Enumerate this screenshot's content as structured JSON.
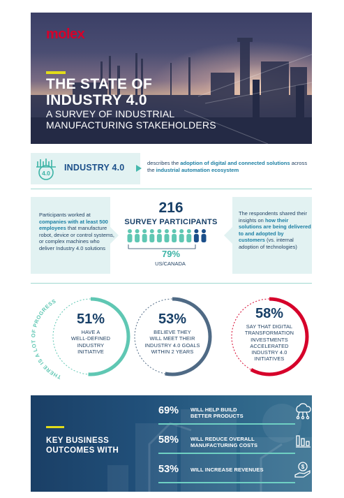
{
  "brand": {
    "logo": "molex",
    "accent": "#d6002a",
    "highlight": "#e2dc1a"
  },
  "hero": {
    "title_line1": "THE STATE OF",
    "title_line2": "INDUSTRY 4.0",
    "subtitle_line1": "A SURVEY OF INDUSTRIAL",
    "subtitle_line2": "MANUFACTURING STAKEHOLDERS"
  },
  "definition": {
    "icon": "factory-4.0-icon",
    "icon_text": "4.0",
    "label": "INDUSTRY 4.0",
    "text_plain1": "describes the ",
    "text_bold1": "adoption of digital and connected solutions",
    "text_plain2": " across the ",
    "text_bold2": "industrial automation ecosystem"
  },
  "survey": {
    "left_plain1": "Participants worked at ",
    "left_bold": "companies with at least 500 employees",
    "left_plain2": " that manufacture robot, device or control systems, or complex machines who deliver Industry 4.0 solutions",
    "count": "216",
    "count_label": "SURVEY PARTICIPANTS",
    "region_pct": "79%",
    "region_label": "US/CANADA",
    "right_plain1": "The respondents shared their insights on ",
    "right_bold": "how their solutions are being delivered to and adopted by customers",
    "right_plain2": " (vs. internal adoption of technologies)",
    "people_total": 11,
    "people_highlighted": 9
  },
  "progress": {
    "arc_label": "THERE IS A LOT OF PROGRESS",
    "stats": [
      {
        "value": "51%",
        "fraction": 0.51,
        "color": "#5fc7b3",
        "line1": "HAVE A",
        "line2": "WELL-DEFINED",
        "line3": "INDUSTRY",
        "line4": "INITIATIVE"
      },
      {
        "value": "53%",
        "fraction": 0.53,
        "color": "#4f6a85",
        "line1": "BELIEVE THEY",
        "line2": "WILL MEET THEIR",
        "line3": "INDUSTRY 4.0 GOALS",
        "line4": "WITHIN 2 YEARS"
      },
      {
        "value": "58%",
        "fraction": 0.58,
        "color": "#d6002a",
        "line1": "SAY THAT DIGITAL",
        "line2": "TRANSFORMATION",
        "line3": "INVESTMENTS",
        "line4": "ACCELERATED",
        "line5": "INDUSTRY 4.0",
        "line6": "INITIATIVES"
      }
    ]
  },
  "outcomes": {
    "heading_line1": "KEY BUSINESS",
    "heading_line2": "OUTCOMES WITH",
    "items": [
      {
        "pct": "69%",
        "line1": "WILL HELP BUILD",
        "line2": "BETTER PRODUCTS",
        "icon": "cloud-network-icon"
      },
      {
        "pct": "58%",
        "line1": "WILL REDUCE OVERALL",
        "line2": "MANUFACTURING COSTS",
        "icon": "falling-bar-chart-icon"
      },
      {
        "pct": "53%",
        "line1": "WILL INCREASE REVENUES",
        "line2": "",
        "icon": "money-hand-icon"
      }
    ]
  }
}
